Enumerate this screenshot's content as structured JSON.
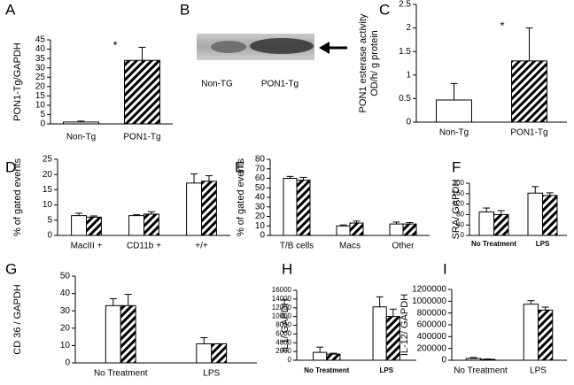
{
  "chart_data": [
    {
      "type": "bar",
      "label": "A",
      "y_label": "PON1-Tg/GAPDH",
      "categories": [
        "Non-Tg",
        "PON1-Tg"
      ],
      "values": [
        1,
        34
      ],
      "errors": [
        0.5,
        7
      ],
      "patterns": [
        "none",
        "diagonal"
      ],
      "ylim": [
        0,
        45
      ],
      "yticks": [
        0,
        5,
        10,
        15,
        20,
        25,
        30,
        35,
        40,
        45
      ],
      "annotation": "*"
    },
    {
      "type": "blot",
      "label": "B",
      "categories": [
        "Non-TG",
        "PON1-Tg"
      ]
    },
    {
      "type": "bar",
      "label": "C",
      "y_label": [
        "PON1 esterase activity",
        "OD/h/  g protein"
      ],
      "categories": [
        "Non-Tg",
        "PON1-Tg"
      ],
      "values": [
        0.47,
        1.3
      ],
      "errors": [
        0.35,
        0.7
      ],
      "patterns": [
        "none",
        "diagonal"
      ],
      "ylim": [
        0,
        2.5
      ],
      "yticks": [
        0,
        0.5,
        1,
        1.5,
        2,
        2.5
      ],
      "annotation": "*"
    },
    {
      "type": "bar",
      "label": "D",
      "y_label": "% of gated events",
      "categories": [
        "MacIII +",
        "CD11b +",
        "+/+"
      ],
      "series": [
        {
          "color": "#000000",
          "pattern": "none",
          "values": [
            6.5,
            6.5,
            17.2
          ],
          "errors": [
            0.8,
            0.3,
            3
          ]
        },
        {
          "color": "#000000",
          "pattern": "diagonal",
          "values": [
            6,
            7,
            17.8
          ],
          "errors": [
            0.4,
            0.8,
            1.8
          ]
        }
      ],
      "ylim": [
        0,
        25
      ],
      "yticks": [
        0,
        5,
        10,
        15,
        20,
        25
      ]
    },
    {
      "type": "bar",
      "label": "E",
      "y_label": "% of gated events",
      "categories": [
        "T/B cells",
        "Macs",
        "Other"
      ],
      "series": [
        {
          "color": "#000000",
          "pattern": "none",
          "values": [
            60,
            10,
            12
          ],
          "errors": [
            2,
            1,
            2
          ]
        },
        {
          "color": "#000000",
          "pattern": "diagonal",
          "values": [
            58,
            13,
            12
          ],
          "errors": [
            3,
            2,
            1.5
          ]
        }
      ],
      "ylim": [
        0,
        80
      ],
      "yticks": [
        0,
        10,
        20,
        30,
        40,
        50,
        60,
        70,
        80
      ]
    },
    {
      "type": "bar",
      "label": "F",
      "y_label": "SRA/ GAPDH",
      "categories": [
        "No Treatment",
        "LPS"
      ],
      "series": [
        {
          "color": "#000000",
          "pattern": "none",
          "values": [
            90,
            162
          ],
          "errors": [
            15,
            25
          ]
        },
        {
          "color": "#000000",
          "pattern": "diagonal",
          "values": [
            80,
            153
          ],
          "errors": [
            15,
            10
          ]
        }
      ],
      "ylim": [
        0,
        200
      ],
      "yticks": [
        0,
        40,
        80,
        120,
        160,
        200
      ]
    },
    {
      "type": "bar",
      "label": "G",
      "y_label": "CD 36 / GAPDH",
      "categories": [
        "No Treatment",
        "LPS"
      ],
      "series": [
        {
          "color": "#000000",
          "pattern": "none",
          "values": [
            33,
            11
          ],
          "errors": [
            4,
            3.5
          ]
        },
        {
          "color": "#000000",
          "pattern": "diagonal",
          "values": [
            33,
            11
          ],
          "errors": [
            6.5,
            0
          ]
        }
      ],
      "ylim": [
        0,
        50
      ],
      "yticks": [
        0,
        10,
        20,
        30,
        40,
        50
      ]
    },
    {
      "type": "bar",
      "label": "H",
      "y_label": "IL1/ GAPDH",
      "categories": [
        "No Treatment",
        "LPS"
      ],
      "series": [
        {
          "color": "#000000",
          "pattern": "none",
          "values": [
            1800,
            12200
          ],
          "errors": [
            1200,
            2300
          ]
        },
        {
          "color": "#000000",
          "pattern": "diagonal",
          "values": [
            1400,
            10000
          ],
          "errors": [
            200,
            1700
          ]
        }
      ],
      "ylim": [
        0,
        16000
      ],
      "yticks": [
        0,
        2000,
        4000,
        6000,
        8000,
        10000,
        12000,
        14000,
        16000
      ]
    },
    {
      "type": "bar",
      "label": "I",
      "y_label": "IL-12/ GAPDH",
      "categories": [
        "No Treatment",
        "LPS"
      ],
      "series": [
        {
          "color": "#000000",
          "pattern": "none",
          "values": [
            30000,
            950000
          ],
          "errors": [
            15000,
            60000
          ]
        },
        {
          "color": "#000000",
          "pattern": "diagonal",
          "values": [
            15000,
            850000
          ],
          "errors": [
            5000,
            50000
          ]
        }
      ],
      "ylim": [
        0,
        1200000
      ],
      "yticks": [
        0,
        200000,
        400000,
        600000,
        800000,
        1000000,
        1200000
      ]
    }
  ]
}
